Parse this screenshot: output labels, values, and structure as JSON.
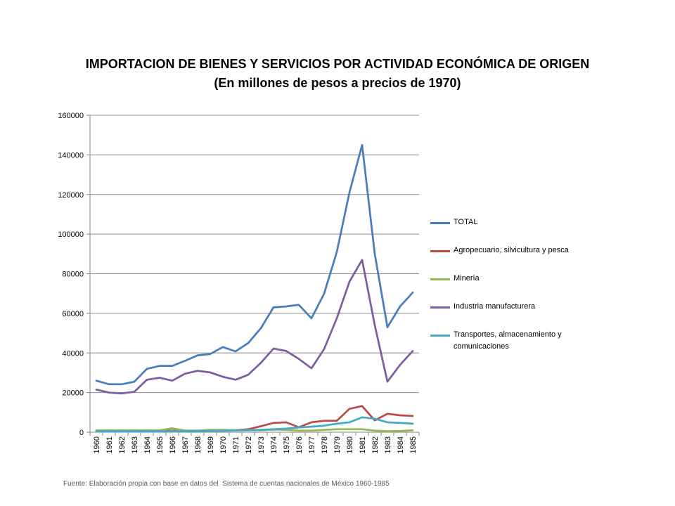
{
  "chart_data": {
    "type": "line",
    "title": "IMPORTACION DE BIENES Y SERVICIOS POR ACTIVIDAD ECONÓMICA DE ORIGEN",
    "subtitle": "(En millones de pesos a precios de 1970)",
    "categories": [
      "1960",
      "1961",
      "1962",
      "1963",
      "1964",
      "1965",
      "1966",
      "1967",
      "1968",
      "1969",
      "1970",
      "1971",
      "1972",
      "1973",
      "1974",
      "1975",
      "1976",
      "1977",
      "1978",
      "1979",
      "1980",
      "1981",
      "1982",
      "1983",
      "1984",
      "1985"
    ],
    "ylim": [
      0,
      160000
    ],
    "yticks": [
      0,
      20000,
      40000,
      60000,
      80000,
      100000,
      120000,
      140000,
      160000
    ],
    "grid": true,
    "legend_position": "right",
    "series": [
      {
        "name": "TOTAL",
        "color": "#4A7EBB",
        "values": [
          26000,
          24200,
          24200,
          25500,
          32000,
          33500,
          33500,
          36000,
          38800,
          39500,
          43000,
          40800,
          45000,
          52500,
          63000,
          63500,
          64300,
          57500,
          70000,
          91000,
          121000,
          145000,
          90000,
          53000,
          63500,
          70500
        ]
      },
      {
        "name": "Agropecuario, silvicultura y pesca",
        "color": "#BE4B48",
        "values": [
          800,
          800,
          800,
          800,
          800,
          800,
          800,
          800,
          800,
          800,
          1200,
          1000,
          1500,
          3000,
          4700,
          5000,
          2500,
          5000,
          5800,
          5800,
          11800,
          13200,
          6000,
          9300,
          8500,
          8200
        ]
      },
      {
        "name": "Minería",
        "color": "#98B954",
        "values": [
          1000,
          1000,
          1000,
          1000,
          1000,
          1000,
          2000,
          800,
          800,
          1200,
          1200,
          1000,
          1000,
          1000,
          1300,
          1200,
          800,
          800,
          1200,
          1500,
          1500,
          1500,
          800,
          500,
          600,
          1000
        ]
      },
      {
        "name": "Industria manufacturera",
        "color": "#7D5FA0",
        "values": [
          21500,
          20000,
          19600,
          20400,
          26500,
          27500,
          26000,
          29500,
          31000,
          30200,
          28000,
          26500,
          29000,
          35000,
          42200,
          41000,
          37000,
          32300,
          42000,
          57500,
          76000,
          87000,
          54000,
          25500,
          34000,
          41000
        ]
      },
      {
        "name": "Transportes, almacenamiento y comunicaciones",
        "color": "#46AAC5",
        "values": [
          500,
          500,
          500,
          500,
          500,
          500,
          500,
          600,
          600,
          700,
          700,
          900,
          1000,
          1200,
          1500,
          1800,
          2400,
          2800,
          3300,
          4300,
          5000,
          7500,
          6800,
          5000,
          4700,
          4300
        ]
      }
    ]
  },
  "footer": {
    "source": "Fuente: Elaboración propia con base en datos del  Sistema de cuentas nacionales de México 1960-1985"
  }
}
